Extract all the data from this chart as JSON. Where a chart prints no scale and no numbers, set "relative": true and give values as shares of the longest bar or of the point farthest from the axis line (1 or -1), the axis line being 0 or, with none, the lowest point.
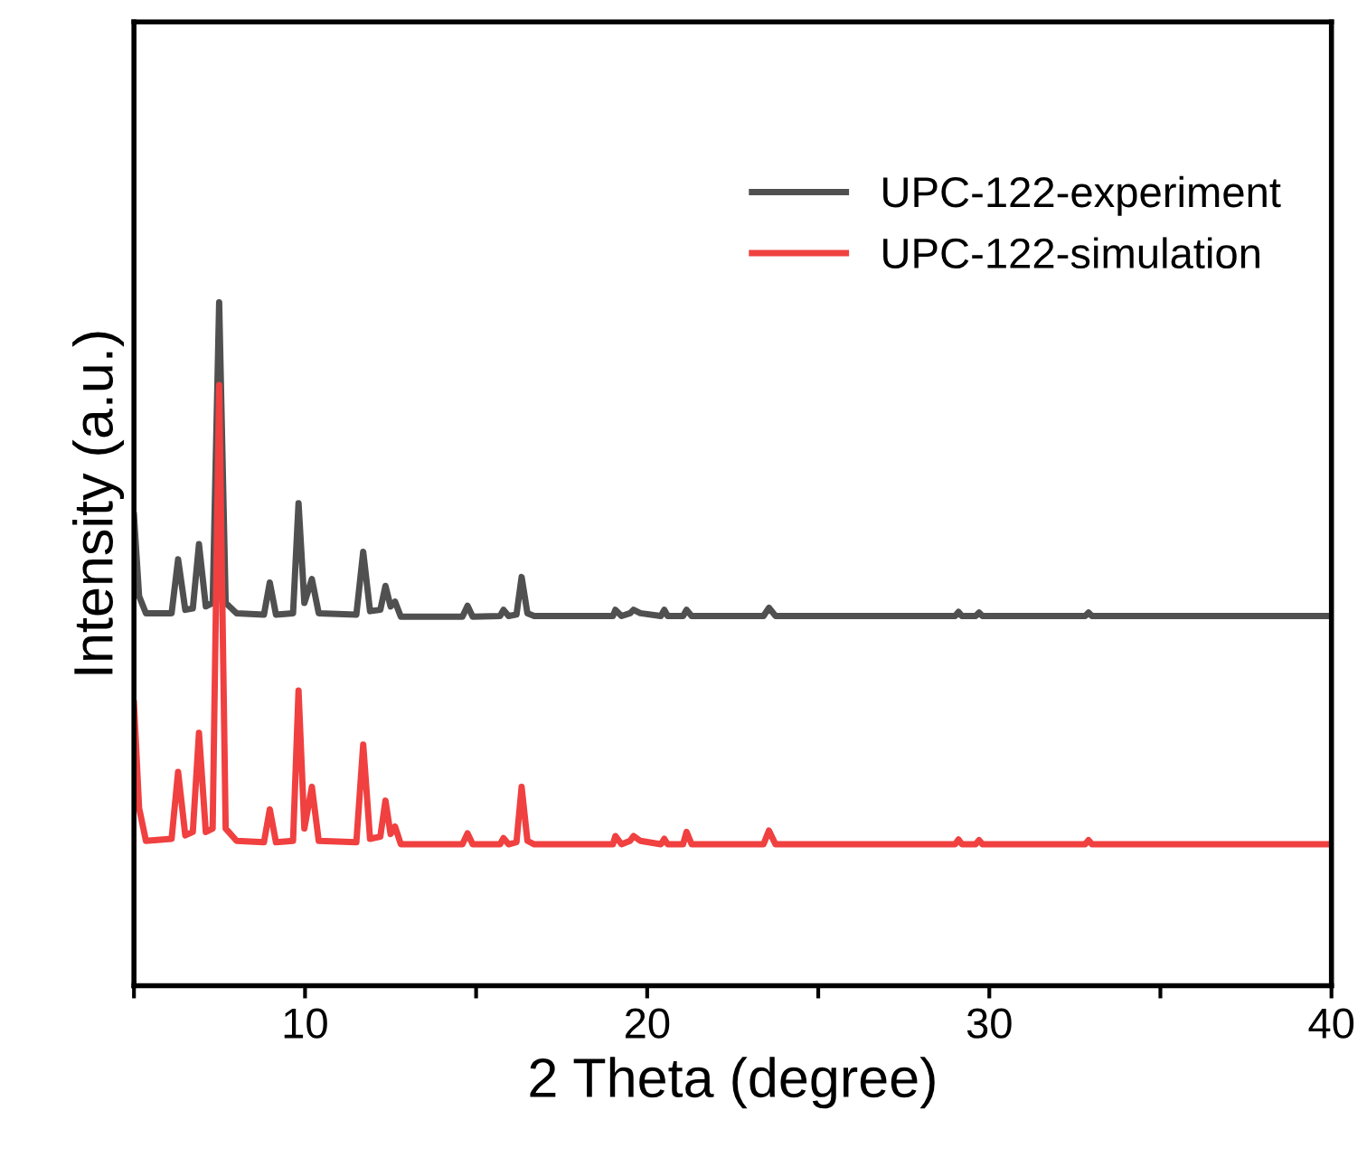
{
  "chart_data": {
    "type": "line",
    "relative": true,
    "xlabel": "2 Theta (degree)",
    "ylabel": "Intensity (a.u.)",
    "xlim": [
      5,
      40
    ],
    "xticks": [
      {
        "value": 5,
        "label": null
      },
      10,
      {
        "value": 15,
        "label": null
      },
      20,
      {
        "value": 25,
        "label": null
      },
      30,
      {
        "value": 35,
        "label": null
      },
      40
    ],
    "legend": "top right",
    "grid": false,
    "series": [
      {
        "name": "UPC-122-experiment",
        "color": "#505050",
        "x": [
          5.0,
          5.15,
          5.35,
          6.1,
          6.29,
          6.5,
          6.72,
          6.9,
          7.1,
          7.3,
          7.49,
          7.68,
          8.0,
          8.8,
          8.97,
          9.15,
          9.65,
          9.81,
          9.98,
          10.2,
          10.4,
          11.5,
          11.7,
          11.9,
          12.2,
          12.35,
          12.5,
          12.63,
          12.8,
          14.6,
          14.75,
          14.9,
          15.7,
          15.8,
          15.95,
          16.18,
          16.33,
          16.5,
          16.7,
          19.0,
          19.07,
          19.25,
          19.5,
          19.6,
          19.8,
          20.4,
          20.5,
          20.6,
          21.05,
          21.15,
          21.3,
          23.4,
          23.56,
          23.75,
          29.0,
          29.1,
          29.2,
          29.6,
          29.7,
          29.8,
          32.8,
          32.9,
          33.0,
          40.0
        ],
        "values": [
          0.688,
          0.57,
          0.545,
          0.545,
          0.624,
          0.55,
          0.552,
          0.646,
          0.555,
          0.56,
          1.0,
          0.56,
          0.545,
          0.543,
          0.59,
          0.543,
          0.545,
          0.706,
          0.56,
          0.595,
          0.545,
          0.543,
          0.635,
          0.548,
          0.55,
          0.585,
          0.555,
          0.562,
          0.54,
          0.54,
          0.556,
          0.54,
          0.541,
          0.55,
          0.541,
          0.543,
          0.598,
          0.545,
          0.541,
          0.541,
          0.55,
          0.541,
          0.545,
          0.55,
          0.545,
          0.541,
          0.55,
          0.541,
          0.541,
          0.55,
          0.541,
          0.541,
          0.553,
          0.541,
          0.541,
          0.547,
          0.541,
          0.541,
          0.546,
          0.541,
          0.541,
          0.546,
          0.541,
          0.541
        ]
      },
      {
        "name": "UPC-122-simulation",
        "color": "#f04040",
        "x": [
          5.0,
          5.15,
          5.35,
          6.1,
          6.29,
          6.5,
          6.72,
          6.9,
          7.1,
          7.3,
          7.49,
          7.68,
          8.0,
          8.8,
          8.97,
          9.15,
          9.65,
          9.81,
          9.98,
          10.2,
          10.4,
          11.5,
          11.7,
          11.9,
          12.2,
          12.35,
          12.5,
          12.63,
          12.8,
          14.6,
          14.75,
          14.9,
          15.7,
          15.8,
          15.95,
          16.18,
          16.33,
          16.5,
          16.7,
          19.0,
          19.07,
          19.25,
          19.5,
          19.6,
          19.8,
          20.4,
          20.5,
          20.6,
          21.05,
          21.15,
          21.3,
          23.4,
          23.56,
          23.75,
          29.0,
          29.1,
          29.2,
          29.6,
          29.7,
          29.8,
          32.8,
          32.9,
          33.0,
          40.0
        ],
        "values": [
          0.413,
          0.26,
          0.212,
          0.215,
          0.313,
          0.22,
          0.225,
          0.37,
          0.225,
          0.23,
          0.879,
          0.23,
          0.212,
          0.21,
          0.258,
          0.21,
          0.212,
          0.432,
          0.23,
          0.291,
          0.212,
          0.21,
          0.353,
          0.215,
          0.218,
          0.271,
          0.222,
          0.233,
          0.207,
          0.207,
          0.223,
          0.207,
          0.207,
          0.216,
          0.207,
          0.21,
          0.291,
          0.212,
          0.207,
          0.207,
          0.219,
          0.207,
          0.212,
          0.219,
          0.212,
          0.207,
          0.215,
          0.207,
          0.207,
          0.225,
          0.207,
          0.207,
          0.227,
          0.207,
          0.207,
          0.214,
          0.207,
          0.207,
          0.213,
          0.207,
          0.207,
          0.213,
          0.207,
          0.207
        ]
      }
    ]
  }
}
